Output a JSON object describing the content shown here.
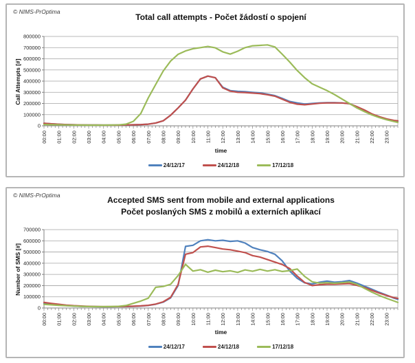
{
  "copyright": "© NIMS-PrOptima",
  "chart_data": [
    {
      "type": "line",
      "title": "Total call attempts - Počet žádostí o spojení",
      "xlabel": "time",
      "ylabel": "Call Attempts [#]",
      "ylim": [
        0,
        800000
      ],
      "ytick_step": 100000,
      "xlim_hours": [
        0,
        23.75
      ],
      "point_interval_hours": 0.5,
      "grid": true,
      "legend_position": "bottom",
      "x_tick_labels": [
        "00:00",
        "01:00",
        "02:00",
        "03:00",
        "04:00",
        "05:00",
        "06:00",
        "07:00",
        "08:00",
        "09:00",
        "10:00",
        "11:00",
        "12:00",
        "13:00",
        "14:00",
        "15:00",
        "16:00",
        "17:00",
        "18:00",
        "19:00",
        "20:00",
        "21:00",
        "22:00",
        "23:00"
      ],
      "series": [
        {
          "name": "24/12/17",
          "color": "#4F81BD",
          "values": [
            22000,
            18000,
            14000,
            11000,
            9000,
            8000,
            7000,
            7000,
            6000,
            6000,
            7000,
            8000,
            9000,
            11000,
            15000,
            25000,
            45000,
            95000,
            160000,
            230000,
            330000,
            420000,
            445000,
            430000,
            345000,
            315000,
            308000,
            305000,
            300000,
            295000,
            283000,
            270000,
            245000,
            218000,
            205000,
            195000,
            200000,
            205000,
            207000,
            207000,
            205000,
            198000,
            170000,
            140000,
            105000,
            80000,
            60000,
            46000,
            42000
          ]
        },
        {
          "name": "24/12/18",
          "color": "#C0504D",
          "values": [
            22000,
            18000,
            14000,
            11000,
            9000,
            8000,
            7000,
            7000,
            6000,
            6000,
            7000,
            8000,
            9000,
            11000,
            15000,
            25000,
            45000,
            95000,
            160000,
            230000,
            330000,
            420000,
            445000,
            430000,
            340000,
            310000,
            300000,
            298000,
            293000,
            288000,
            278000,
            265000,
            238000,
            210000,
            194000,
            188000,
            195000,
            202000,
            205000,
            205000,
            204000,
            198000,
            172000,
            142000,
            107000,
            82000,
            62000,
            48000,
            45000
          ]
        },
        {
          "name": "17/12/18",
          "color": "#9BBB59",
          "values": [
            12000,
            10000,
            9000,
            8000,
            7000,
            7000,
            6000,
            6000,
            6000,
            7000,
            8000,
            15000,
            40000,
            110000,
            250000,
            370000,
            490000,
            580000,
            640000,
            670000,
            690000,
            700000,
            710000,
            698000,
            662000,
            642000,
            668000,
            700000,
            716000,
            720000,
            724000,
            706000,
            640000,
            570000,
            495000,
            430000,
            376000,
            345000,
            315000,
            280000,
            240000,
            200000,
            160000,
            128000,
            98000,
            74000,
            54000,
            38000,
            30000
          ]
        }
      ]
    },
    {
      "type": "line",
      "title": "Accepted SMS sent from mobile and external applications",
      "subtitle": "Počet poslaných SMS z mobilů a externích aplikací",
      "xlabel": "time",
      "ylabel": "Number of SMS [#]",
      "ylim": [
        0,
        700000
      ],
      "ytick_step": 100000,
      "xlim_hours": [
        0,
        23.75
      ],
      "point_interval_hours": 0.5,
      "grid": true,
      "legend_position": "bottom",
      "x_tick_labels": [
        "00:00",
        "01:00",
        "02:00",
        "03:00",
        "04:00",
        "05:00",
        "06:00",
        "07:00",
        "08:00",
        "09:00",
        "10:00",
        "11:00",
        "12:00",
        "13:00",
        "14:00",
        "15:00",
        "16:00",
        "17:00",
        "18:00",
        "19:00",
        "20:00",
        "21:00",
        "22:00",
        "23:00"
      ],
      "series": [
        {
          "name": "24/12/17",
          "color": "#4F81BD",
          "values": [
            38000,
            32000,
            27000,
            22000,
            18000,
            15000,
            13000,
            12000,
            11000,
            11000,
            12000,
            13000,
            15000,
            18000,
            23000,
            34000,
            52000,
            90000,
            200000,
            550000,
            560000,
            600000,
            610000,
            600000,
            605000,
            595000,
            600000,
            580000,
            540000,
            520000,
            505000,
            480000,
            420000,
            330000,
            265000,
            225000,
            215000,
            230000,
            240000,
            230000,
            235000,
            245000,
            222000,
            195000,
            168000,
            140000,
            115000,
            88000,
            78000
          ]
        },
        {
          "name": "24/12/18",
          "color": "#C0504D",
          "values": [
            50000,
            41000,
            33000,
            26000,
            21000,
            18000,
            15000,
            13000,
            12000,
            12000,
            13000,
            14000,
            16000,
            19000,
            24000,
            35000,
            55000,
            95000,
            210000,
            480000,
            495000,
            545000,
            552000,
            540000,
            527000,
            520000,
            508000,
            495000,
            468000,
            455000,
            432000,
            410000,
            388000,
            352000,
            285000,
            228000,
            200000,
            208000,
            212000,
            212000,
            215000,
            218000,
            202000,
            183000,
            158000,
            133000,
            112000,
            92000,
            86000
          ]
        },
        {
          "name": "17/12/18",
          "color": "#9BBB59",
          "values": [
            33000,
            28000,
            24000,
            20000,
            17000,
            15000,
            13000,
            12000,
            12000,
            13000,
            15000,
            22000,
            42000,
            62000,
            88000,
            185000,
            192000,
            212000,
            290000,
            390000,
            330000,
            342000,
            320000,
            338000,
            324000,
            332000,
            318000,
            340000,
            328000,
            345000,
            330000,
            342000,
            326000,
            334000,
            348000,
            282000,
            234000,
            222000,
            226000,
            221000,
            226000,
            232000,
            212000,
            176000,
            142000,
            112000,
            86000,
            62000,
            50000
          ]
        }
      ]
    }
  ]
}
